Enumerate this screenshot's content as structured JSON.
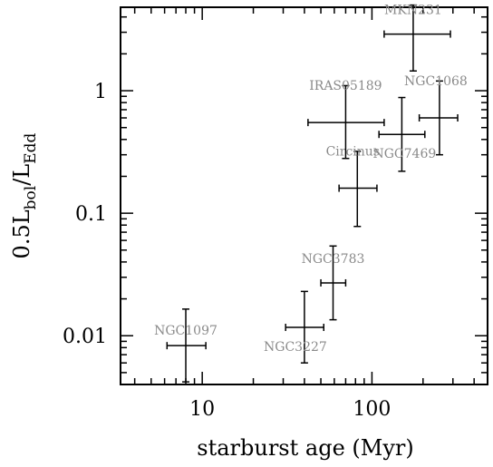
{
  "chart_data": {
    "type": "scatter",
    "title": "",
    "xlabel": "starburst age (Myr)",
    "ylabel_parts": {
      "main": "0.5L",
      "sub1": "bol",
      "slash": "/L",
      "sub2": "Edd"
    },
    "x_scale": "log",
    "y_scale": "log",
    "xlim": [
      3.3,
      480
    ],
    "ylim": [
      0.004,
      4.8
    ],
    "grid": false,
    "x_ticks": [
      {
        "value": 10,
        "label": "10"
      },
      {
        "value": 100,
        "label": "100"
      }
    ],
    "y_ticks": [
      {
        "value": 0.01,
        "label": "0.01"
      },
      {
        "value": 0.1,
        "label": "0.1"
      },
      {
        "value": 1,
        "label": "1"
      }
    ],
    "label_color": "#8a8a8a",
    "points": [
      {
        "name": "NGC1097",
        "x": 8.0,
        "xerr": [
          6.2,
          10.5
        ],
        "y": 0.0083,
        "yerr": [
          0.0042,
          0.0165
        ]
      },
      {
        "name": "NGC3227",
        "x": 40,
        "xerr": [
          31,
          52
        ],
        "y": 0.0117,
        "yerr": [
          0.006,
          0.023
        ]
      },
      {
        "name": "NGC3783",
        "x": 59,
        "xerr": [
          50,
          70
        ],
        "y": 0.027,
        "yerr": [
          0.0135,
          0.054
        ]
      },
      {
        "name": "Circinus",
        "x": 82,
        "xerr": [
          64,
          107
        ],
        "y": 0.16,
        "yerr": [
          0.078,
          0.32
        ]
      },
      {
        "name": "IRAS05189",
        "x": 70,
        "xerr": [
          42,
          118
        ],
        "y": 0.55,
        "yerr": [
          0.28,
          1.1
        ]
      },
      {
        "name": "NGC7469",
        "x": 150,
        "xerr": [
          110,
          205
        ],
        "y": 0.44,
        "yerr": [
          0.22,
          0.88
        ]
      },
      {
        "name": "NGC1068",
        "x": 250,
        "xerr": [
          190,
          320
        ],
        "y": 0.6,
        "yerr": [
          0.3,
          1.2
        ]
      },
      {
        "name": "MKN231",
        "x": 175,
        "xerr": [
          118,
          290
        ],
        "y": 2.9,
        "yerr": [
          1.45,
          5.0
        ]
      }
    ]
  }
}
